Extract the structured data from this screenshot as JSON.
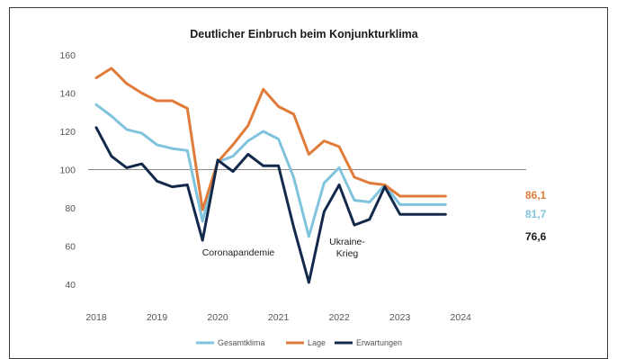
{
  "chart_data": {
    "type": "line",
    "title": "Deutlicher Einbruch beim Konjunkturklima",
    "xlabel": "",
    "ylabel": "",
    "ylim": [
      40,
      160
    ],
    "yticks": [
      40,
      60,
      80,
      100,
      120,
      140,
      160
    ],
    "xlim": [
      2018,
      2024.9
    ],
    "xticks": [
      "2018",
      "2019",
      "2020",
      "2021",
      "2022",
      "2023",
      "2024"
    ],
    "reference_line": 100,
    "grid": false,
    "legend_position": "bottom",
    "x": [
      2018.0,
      2018.25,
      2018.5,
      2018.75,
      2019.0,
      2019.25,
      2019.5,
      2019.75,
      2020.0,
      2020.25,
      2020.5,
      2020.75,
      2021.0,
      2021.25,
      2021.5,
      2021.75,
      2022.0,
      2022.25,
      2022.5,
      2022.75,
      2023.0,
      2023.25,
      2023.5,
      2023.75,
      2024.0,
      2024.25,
      2024.5,
      2024.75
    ],
    "series": [
      {
        "name": "Gesamtklima",
        "color": "#7fc4dc",
        "values": [
          134,
          128,
          121,
          119,
          113,
          111,
          110,
          73,
          104,
          107,
          115,
          120,
          116,
          96,
          65,
          93,
          101,
          84,
          83,
          92,
          81.7,
          81.7,
          81.7,
          81.7,
          81.7,
          81.7,
          81.7,
          81.7
        ],
        "end_label": "81,7"
      },
      {
        "name": "Lage",
        "color": "#e07b39",
        "values": [
          148,
          153,
          145,
          140,
          136,
          136,
          132,
          79,
          104,
          113,
          123,
          142,
          133,
          129,
          108,
          115,
          112,
          96,
          93,
          92,
          86.1,
          86.1,
          86.1,
          86.1,
          86.1,
          86.1,
          86.1,
          86.1
        ],
        "end_label": "86,1"
      },
      {
        "name": "Erwartungen",
        "color": "#13294b",
        "values": [
          122,
          107,
          101,
          103,
          94,
          91,
          92,
          63,
          105,
          99,
          108,
          102,
          102,
          70,
          41,
          78,
          92,
          71,
          74,
          91,
          76.6,
          76.6,
          76.6,
          76.6,
          76.6,
          76.6,
          76.6,
          76.6
        ],
        "end_label": "76,6"
      }
    ],
    "annotations": [
      {
        "text": "Coronapandemie"
      },
      {
        "text": "Ukraine-Krieg"
      }
    ]
  }
}
